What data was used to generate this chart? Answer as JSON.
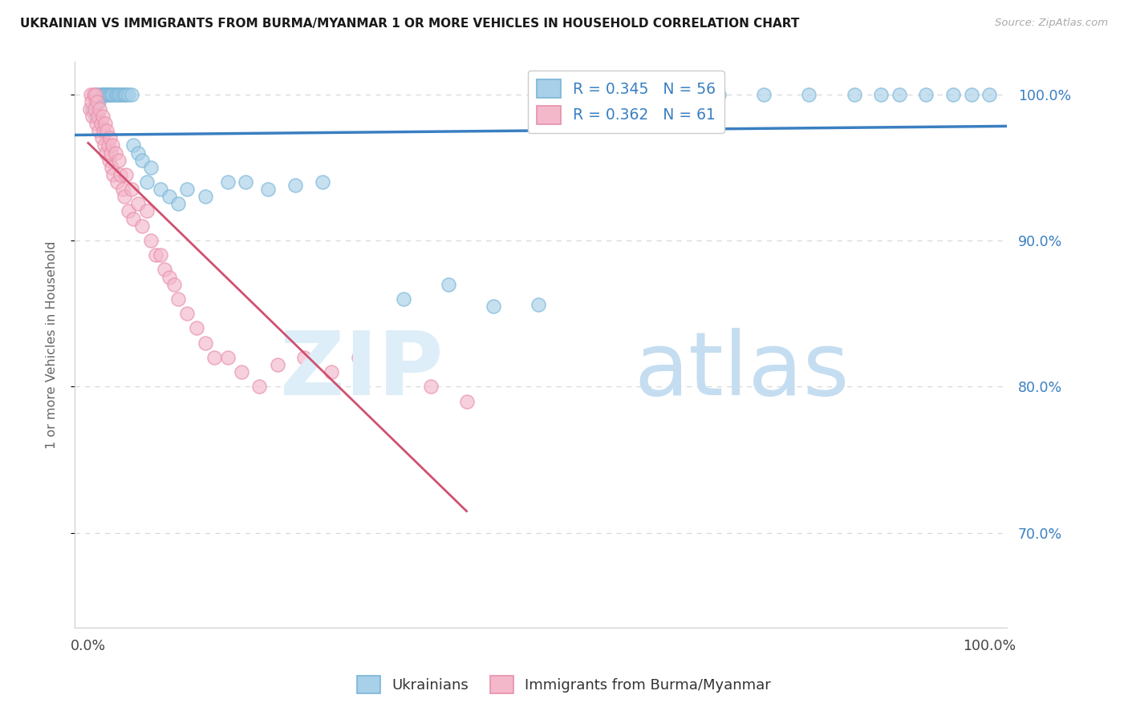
{
  "title": "UKRAINIAN VS IMMIGRANTS FROM BURMA/MYANMAR 1 OR MORE VEHICLES IN HOUSEHOLD CORRELATION CHART",
  "source": "Source: ZipAtlas.com",
  "ylabel": "1 or more Vehicles in Household",
  "blue_color": "#a8d0e8",
  "pink_color": "#f4b8cb",
  "blue_edge_color": "#7ab5d8",
  "pink_edge_color": "#e890ab",
  "blue_line_color": "#3a7fc1",
  "pink_line_color": "#d05070",
  "legend_label_color": "#3a7fc1",
  "ytick_color": "#3a7fc1",
  "grid_color": "#d8d8d8",
  "title_color": "#1a1a1a",
  "source_color": "#aaaaaa",
  "watermark_zip_color": "#ddeef8",
  "watermark_atlas_color": "#c5ddf0",
  "blue_x": [
    0.005,
    0.008,
    0.01,
    0.012,
    0.013,
    0.015,
    0.016,
    0.018,
    0.019,
    0.02,
    0.022,
    0.023,
    0.025,
    0.026,
    0.028,
    0.03,
    0.032,
    0.034,
    0.036,
    0.038,
    0.04,
    0.042,
    0.045,
    0.048,
    0.05,
    0.055,
    0.06,
    0.065,
    0.07,
    0.08,
    0.09,
    0.1,
    0.11,
    0.13,
    0.155,
    0.175,
    0.2,
    0.23,
    0.26,
    0.35,
    0.4,
    0.45,
    0.5,
    0.55,
    0.6,
    0.65,
    0.7,
    0.75,
    0.8,
    0.85,
    0.88,
    0.9,
    0.93,
    0.96,
    0.98,
    1.0
  ],
  "blue_y": [
    0.99,
    0.985,
    1.0,
    0.995,
    1.0,
    1.0,
    1.0,
    1.0,
    1.0,
    1.0,
    1.0,
    1.0,
    1.0,
    1.0,
    1.0,
    1.0,
    1.0,
    1.0,
    1.0,
    1.0,
    1.0,
    1.0,
    1.0,
    1.0,
    0.965,
    0.96,
    0.955,
    0.94,
    0.95,
    0.935,
    0.93,
    0.925,
    0.935,
    0.93,
    0.94,
    0.94,
    0.935,
    0.938,
    0.94,
    0.86,
    0.87,
    0.855,
    0.856,
    1.0,
    1.0,
    1.0,
    1.0,
    1.0,
    1.0,
    1.0,
    1.0,
    1.0,
    1.0,
    1.0,
    1.0,
    1.0
  ],
  "pink_x": [
    0.002,
    0.003,
    0.004,
    0.005,
    0.006,
    0.007,
    0.008,
    0.009,
    0.01,
    0.011,
    0.012,
    0.013,
    0.014,
    0.015,
    0.016,
    0.017,
    0.018,
    0.019,
    0.02,
    0.021,
    0.022,
    0.023,
    0.024,
    0.025,
    0.026,
    0.027,
    0.028,
    0.03,
    0.032,
    0.034,
    0.036,
    0.038,
    0.04,
    0.042,
    0.045,
    0.048,
    0.05,
    0.055,
    0.06,
    0.065,
    0.07,
    0.075,
    0.08,
    0.085,
    0.09,
    0.095,
    0.1,
    0.11,
    0.12,
    0.13,
    0.14,
    0.155,
    0.17,
    0.19,
    0.21,
    0.24,
    0.27,
    0.3,
    0.34,
    0.38,
    0.42
  ],
  "pink_y": [
    0.99,
    1.0,
    0.995,
    0.985,
    1.0,
    0.99,
    1.0,
    0.98,
    0.995,
    0.985,
    0.975,
    0.99,
    0.98,
    0.97,
    0.985,
    0.975,
    0.965,
    0.98,
    0.96,
    0.975,
    0.965,
    0.955,
    0.97,
    0.96,
    0.95,
    0.965,
    0.945,
    0.96,
    0.94,
    0.955,
    0.945,
    0.935,
    0.93,
    0.945,
    0.92,
    0.935,
    0.915,
    0.925,
    0.91,
    0.92,
    0.9,
    0.89,
    0.89,
    0.88,
    0.875,
    0.87,
    0.86,
    0.85,
    0.84,
    0.83,
    0.82,
    0.82,
    0.81,
    0.8,
    0.815,
    0.82,
    0.81,
    0.82,
    0.81,
    0.8,
    0.79
  ],
  "xlim": [
    -0.015,
    1.02
  ],
  "ylim": [
    0.635,
    1.022
  ],
  "yticks": [
    0.7,
    0.8,
    0.9,
    1.0
  ],
  "ytick_labels": [
    "70.0%",
    "80.0%",
    "90.0%",
    "100.0%"
  ],
  "xtick_labels": [
    "0.0%",
    "100.0%"
  ],
  "legend_R_blue": "R = 0.345",
  "legend_N_blue": "N = 56",
  "legend_R_pink": "R = 0.362",
  "legend_N_pink": "N = 61"
}
